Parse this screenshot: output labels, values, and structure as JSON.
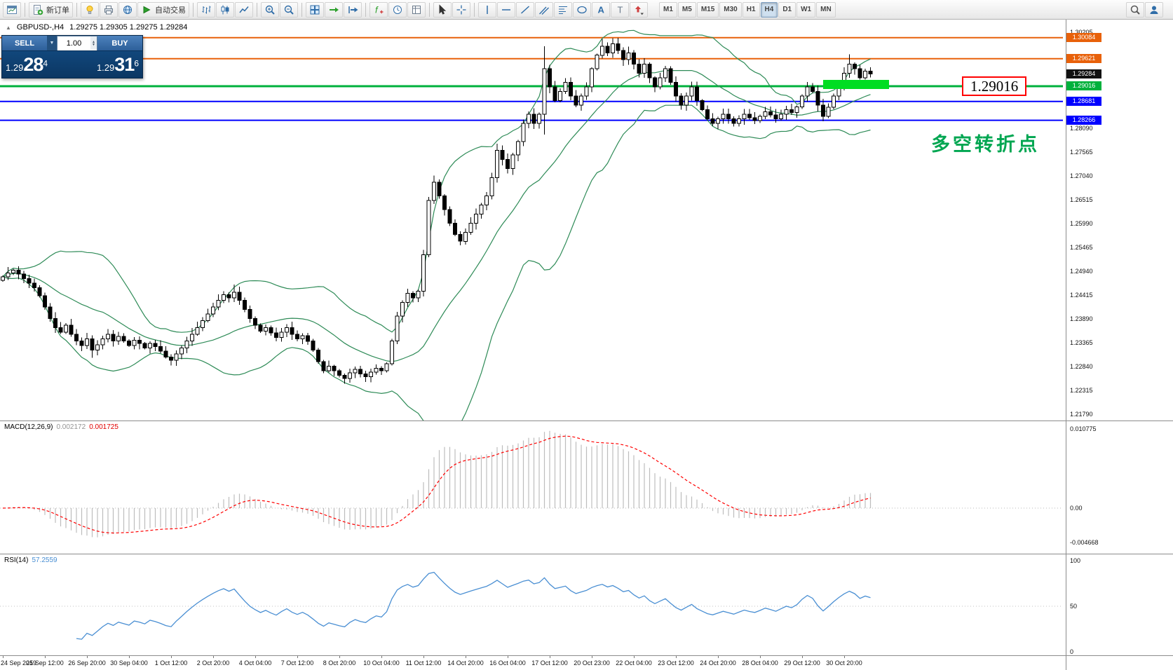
{
  "icons_text": {
    "symbol_marker": "▲",
    "caret_down": "▼",
    "spin_up": "▲",
    "spin_down": "▼"
  },
  "toolbar": {
    "groups": [
      {
        "items": [
          {
            "icon": "chart-window-icon",
            "name": "new-chart-button"
          }
        ]
      },
      {
        "items": [
          {
            "icon": "new-order-icon",
            "name": "new-order-button",
            "label": "新订单"
          }
        ]
      },
      {
        "items": [
          {
            "icon": "bulb-icon",
            "name": "news-button"
          },
          {
            "icon": "print-icon",
            "name": "print-button"
          },
          {
            "icon": "globe-icon",
            "name": "community-button"
          },
          {
            "icon": "autotrade-icon",
            "name": "autotrade-button",
            "label": "自动交易"
          }
        ]
      },
      {
        "items": [
          {
            "icon": "bar-chart-icon",
            "name": "bar-chart-button"
          },
          {
            "icon": "candlestick-icon",
            "name": "candlestick-chart-button"
          },
          {
            "icon": "line-chart-icon",
            "name": "line-chart-button"
          }
        ]
      },
      {
        "items": [
          {
            "icon": "zoom-in-icon",
            "name": "zoom-in-button"
          },
          {
            "icon": "zoom-out-icon",
            "name": "zoom-out-button"
          }
        ]
      },
      {
        "items": [
          {
            "icon": "tile-windows-icon",
            "name": "tile-windows-button"
          },
          {
            "icon": "auto-scroll-icon",
            "name": "auto-scroll-button"
          },
          {
            "icon": "chart-shift-icon",
            "name": "chart-shift-button"
          }
        ]
      },
      {
        "items": [
          {
            "icon": "indicators-icon",
            "name": "indicators-button"
          },
          {
            "icon": "period-icon",
            "name": "periods-button"
          },
          {
            "icon": "template-icon",
            "name": "templates-button"
          }
        ]
      },
      {
        "items": [
          {
            "icon": "cursor-icon",
            "name": "cursor-button"
          },
          {
            "icon": "crosshair-icon",
            "name": "crosshair-button"
          }
        ]
      },
      {
        "items": [
          {
            "icon": "vline-icon",
            "name": "vertical-line-button"
          },
          {
            "icon": "hline-icon",
            "name": "horizontal-line-button"
          },
          {
            "icon": "trendline-icon",
            "name": "trendline-button"
          },
          {
            "icon": "channel-icon",
            "name": "channel-button"
          },
          {
            "icon": "fibonacci-icon",
            "name": "fibonacci-button"
          },
          {
            "icon": "shapes-icon",
            "name": "shapes-button"
          },
          {
            "icon": "text-icon",
            "name": "text-button"
          },
          {
            "icon": "label-icon",
            "name": "text-label-button"
          },
          {
            "icon": "arrows-icon",
            "name": "arrows-button"
          }
        ]
      }
    ],
    "timeframes": [
      "M1",
      "M5",
      "M15",
      "M30",
      "H1",
      "H4",
      "D1",
      "W1",
      "MN"
    ],
    "active_timeframe": "H4",
    "right": [
      {
        "icon": "search-icon",
        "name": "search-button"
      },
      {
        "icon": "chat-icon",
        "name": "community-chat-button"
      }
    ]
  },
  "chart": {
    "title": "GBPUSD-,H4",
    "ohlc": "1.29275 1.29305 1.29275 1.29284"
  },
  "trade_panel": {
    "sell_label": "SELL",
    "buy_label": "BUY",
    "volume": "1.00",
    "sell_price": {
      "main": "1.29",
      "big": "28",
      "sup": "4"
    },
    "buy_price": {
      "main": "1.29",
      "big": "31",
      "sup": "6"
    }
  },
  "levels": [
    {
      "price": 1.30084,
      "label": "1.30084",
      "color": "#e8610a",
      "line": true,
      "width": 2
    },
    {
      "price": 1.29621,
      "label": "1.29621",
      "color": "#e8610a",
      "line": true,
      "width": 2
    },
    {
      "price": 1.29284,
      "label": "1.29284",
      "color": "#111111",
      "line": false,
      "width": 0
    },
    {
      "price": 1.29016,
      "label": "1.29016",
      "color": "#00b13c",
      "line": true,
      "width": 3
    },
    {
      "price": 1.28681,
      "label": "1.28681",
      "color": "#0000ff",
      "line": true,
      "width": 2
    },
    {
      "price": 1.28266,
      "label": "1.28266",
      "color": "#0000ff",
      "line": true,
      "width": 2
    }
  ],
  "annotations": {
    "price_callout": "1.29016",
    "note": "多空转折点",
    "highlight_rect": {
      "from_index": 156,
      "to_index": 168.5,
      "top_price": 1.2916,
      "bottom_price": 1.2896,
      "color": "#00dd22"
    }
  },
  "price_scale": {
    "ticks": [
      "1.30205",
      "1.28090",
      "1.27565",
      "1.27040",
      "1.26515",
      "1.25990",
      "1.25465",
      "1.24940",
      "1.24415",
      "1.23890",
      "1.23365",
      "1.22840",
      "1.22315",
      "1.21790"
    ]
  },
  "macd": {
    "label": "MACD(12,26,9)",
    "value1": "0.002172",
    "value2": "0.001725",
    "scale": [
      {
        "label": "0.010775",
        "value": 0.010775
      },
      {
        "label": "0.00",
        "value": 0
      },
      {
        "label": "-0.004668",
        "value": -0.004668
      }
    ]
  },
  "rsi": {
    "label": "RSI(14)",
    "value": "57.2559",
    "scale": [
      {
        "label": "100",
        "value": 100
      },
      {
        "label": "50",
        "value": 50
      },
      {
        "label": "0",
        "value": 0
      }
    ]
  },
  "time_axis": {
    "labels": [
      "24 Sep 2019",
      "25 Sep 12:00",
      "26 Sep 20:00",
      "30 Sep 04:00",
      "1 Oct 12:00",
      "2 Oct 20:00",
      "4 Oct 04:00",
      "7 Oct 12:00",
      "8 Oct 20:00",
      "10 Oct 04:00",
      "11 Oct 12:00",
      "14 Oct 20:00",
      "16 Oct 04:00",
      "17 Oct 12:00",
      "20 Oct 23:00",
      "22 Oct 04:00",
      "23 Oct 12:00",
      "24 Oct 20:00",
      "28 Oct 04:00",
      "29 Oct 12:00",
      "30 Oct 20:00"
    ],
    "candles_per_label": 8
  },
  "chart_data": {
    "type": "candlestick",
    "symbol": "GBPUSD-",
    "timeframe": "H4",
    "y_range": [
      1.2179,
      1.30205
    ],
    "closes": [
      1.2482,
      1.249,
      1.2496,
      1.2488,
      1.2478,
      1.2468,
      1.2458,
      1.244,
      1.2415,
      1.239,
      1.237,
      1.236,
      1.2375,
      1.2355,
      1.234,
      1.233,
      1.2345,
      1.232,
      1.2332,
      1.2345,
      1.2355,
      1.234,
      1.235,
      1.234,
      1.233,
      1.2342,
      1.2335,
      1.2325,
      1.2335,
      1.2328,
      1.2318,
      1.2305,
      1.2298,
      1.2312,
      1.2325,
      1.234,
      1.2355,
      1.237,
      1.2385,
      1.24,
      1.2415,
      1.243,
      1.2442,
      1.2435,
      1.2448,
      1.243,
      1.241,
      1.239,
      1.2375,
      1.2362,
      1.237,
      1.2358,
      1.2348,
      1.236,
      1.237,
      1.2355,
      1.2345,
      1.2352,
      1.234,
      1.232,
      1.2295,
      1.2275,
      1.2285,
      1.2275,
      1.2265,
      1.2258,
      1.227,
      1.2278,
      1.2268,
      1.2262,
      1.2272,
      1.228,
      1.2275,
      1.229,
      1.234,
      1.2395,
      1.2425,
      1.2445,
      1.2435,
      1.245,
      1.253,
      1.265,
      1.269,
      1.266,
      1.263,
      1.26,
      1.2575,
      1.256,
      1.258,
      1.26,
      1.262,
      1.264,
      1.266,
      1.27,
      1.276,
      1.274,
      1.272,
      1.275,
      1.278,
      1.282,
      1.284,
      1.282,
      1.284,
      1.294,
      1.29,
      1.287,
      1.289,
      1.291,
      1.288,
      1.286,
      1.288,
      1.29,
      1.294,
      1.297,
      1.299,
      1.2975,
      1.2995,
      1.298,
      1.296,
      1.2975,
      1.295,
      1.293,
      1.295,
      1.292,
      1.29,
      1.292,
      1.294,
      1.291,
      1.288,
      1.286,
      1.288,
      1.29,
      1.287,
      1.285,
      1.283,
      1.282,
      1.283,
      1.284,
      1.283,
      1.282,
      1.283,
      1.284,
      1.2832,
      1.2826,
      1.2835,
      1.2845,
      1.2838,
      1.283,
      1.284,
      1.285,
      1.2844,
      1.2856,
      1.288,
      1.29,
      1.289,
      1.286,
      1.2835,
      1.2855,
      1.288,
      1.2905,
      1.293,
      1.295,
      1.294,
      1.292,
      1.2935,
      1.29284
    ],
    "wick_overrides": {
      "17": [
        null,
        1.2303
      ],
      "32": [
        null,
        1.2286
      ],
      "44": [
        1.2465,
        null
      ],
      "65": [
        null,
        1.2246
      ],
      "69": [
        null,
        1.225
      ],
      "82": [
        1.2705,
        null
      ],
      "94": [
        1.2775,
        null
      ],
      "103": [
        1.299,
        1.2795
      ],
      "114": [
        1.30055,
        null
      ],
      "116": [
        1.30075,
        null
      ],
      "161": [
        1.2972,
        null
      ]
    },
    "indicators": {
      "bollinger": {
        "period": 20,
        "deviation": 2,
        "color": "#2e8b57"
      },
      "macd": {
        "fast": 12,
        "slow": 26,
        "signal": 9,
        "histogram_color": "#bdbdbd",
        "signal_color": "#ff0000"
      },
      "rsi": {
        "period": 14,
        "color": "#4a8fd3"
      }
    }
  }
}
